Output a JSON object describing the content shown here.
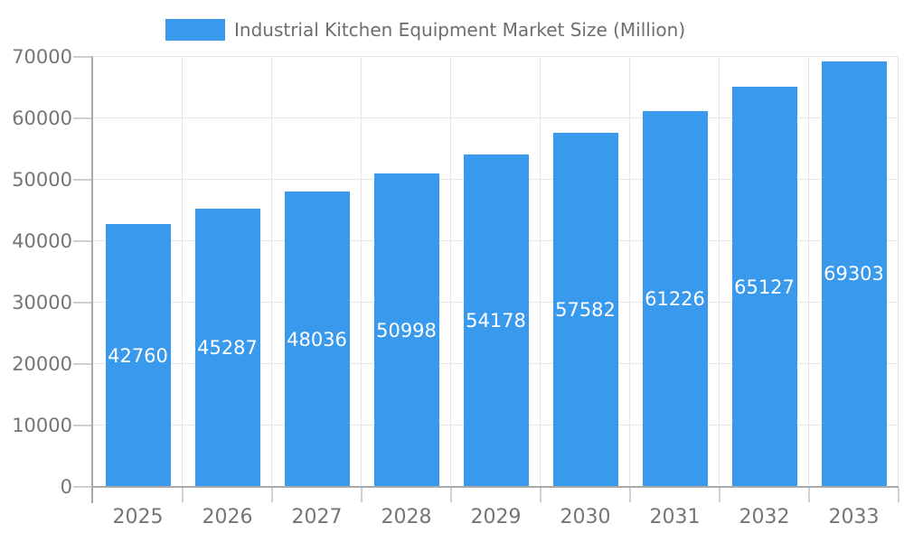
{
  "chart_data": {
    "type": "bar",
    "title": "Industrial Kitchen Equipment Market Size (Million)",
    "categories": [
      "2025",
      "2026",
      "2027",
      "2028",
      "2029",
      "2030",
      "2031",
      "2032",
      "2033"
    ],
    "values": [
      42760,
      45287,
      48036,
      50998,
      54178,
      57582,
      61226,
      65127,
      69303
    ],
    "xlabel": "",
    "ylabel": "",
    "ylim": [
      0,
      70000
    ],
    "ytick_step": 10000,
    "ytick_labels": [
      "0",
      "10000",
      "20000",
      "30000",
      "40000",
      "50000",
      "60000",
      "70000"
    ],
    "grid": true,
    "legend_position": "top",
    "bar_color": "#3899ED",
    "colors": {
      "grid_line": "#E6E6E6",
      "tick": "#CFCFCF",
      "axis_line": "#A9A9A9",
      "axis_text": "#757575",
      "title_text": "#6E6E6E",
      "value_label": "#FFFFFF",
      "background": "#FFFFFF"
    }
  }
}
